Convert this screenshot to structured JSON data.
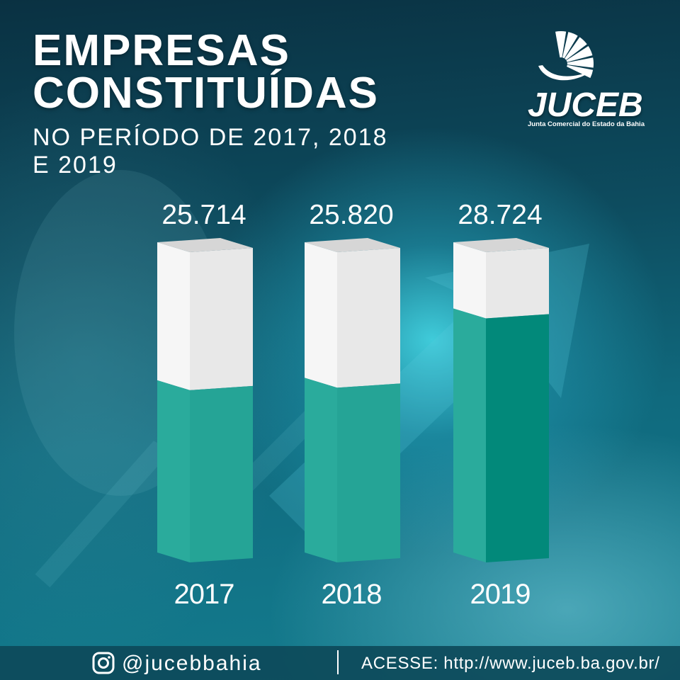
{
  "chart_data": {
    "type": "bar",
    "title_lines": [
      "EMPRESAS",
      "CONSTITUÍDAS"
    ],
    "subtitle_lines": [
      "NO PERÍODO DE 2017, 2018",
      "E 2019"
    ],
    "categories": [
      "2017",
      "2018",
      "2019"
    ],
    "values": [
      25714,
      25820,
      28724
    ],
    "data_labels": [
      "25.714",
      "25.820",
      "28.724"
    ],
    "grid": false,
    "legend": "none",
    "colors": {
      "top": "#d6d6d6",
      "empty_side": "#f6f6f6",
      "empty_front": "#e8e8e8",
      "filled_side": "#2aab9c",
      "filled_front": [
        "#25a496",
        "#25a496",
        "#02897a"
      ]
    }
  },
  "logo": {
    "icon": "juceb-emblem-icon",
    "name": "JUCEB",
    "tagline": "Junta Comercial do Estado da Bahia"
  },
  "footer": {
    "instagram_icon": "instagram-icon",
    "instagram_handle": "@jucebbahia",
    "website_text": "ACESSE: http://www.juceb.ba.gov.br/"
  },
  "colors": {
    "text": "#ffffff",
    "footer": "#0d4a5a",
    "brand_teal": "#25a496"
  }
}
